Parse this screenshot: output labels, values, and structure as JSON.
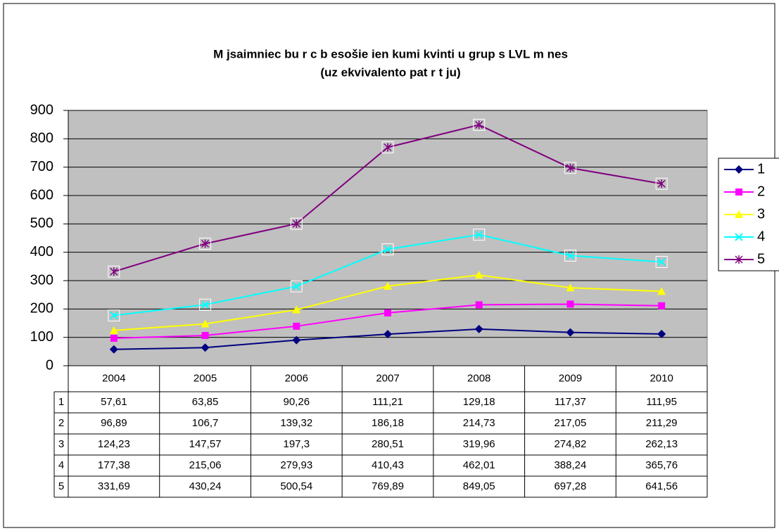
{
  "chart_data": {
    "type": "line",
    "title": "M jsaimniec bu r c b esošie ien kumi kvinti u grup s LVL m nes",
    "subtitle": "(uz ekvivalento pat r t ju)",
    "categories": [
      "2004",
      "2005",
      "2006",
      "2007",
      "2008",
      "2009",
      "2010"
    ],
    "series": [
      {
        "name": "1",
        "color": "#000080",
        "marker": "diamond",
        "values": [
          57.61,
          63.85,
          90.26,
          111.21,
          129.18,
          117.37,
          111.95
        ],
        "value_labels": [
          "57,61",
          "63,85",
          "90,26",
          "111,21",
          "129,18",
          "117,37",
          "111,95"
        ]
      },
      {
        "name": "2",
        "color": "#ff00ff",
        "marker": "square",
        "values": [
          96.89,
          106.7,
          139.32,
          186.18,
          214.73,
          217.05,
          211.29
        ],
        "value_labels": [
          "96,89",
          "106,7",
          "139,32",
          "186,18",
          "214,73",
          "217,05",
          "211,29"
        ]
      },
      {
        "name": "3",
        "color": "#ffff00",
        "marker": "triangle",
        "values": [
          124.23,
          147.57,
          197.3,
          280.51,
          319.96,
          274.82,
          262.13
        ],
        "value_labels": [
          "124,23",
          "147,57",
          "197,3",
          "280,51",
          "319,96",
          "274,82",
          "262,13"
        ]
      },
      {
        "name": "4",
        "color": "#00ffff",
        "marker": "x",
        "values": [
          177.38,
          215.06,
          279.93,
          410.43,
          462.01,
          388.24,
          365.76
        ],
        "value_labels": [
          "177,38",
          "215,06",
          "279,93",
          "410,43",
          "462,01",
          "388,24",
          "365,76"
        ]
      },
      {
        "name": "5",
        "color": "#800080",
        "marker": "star",
        "values": [
          331.69,
          430.24,
          500.54,
          769.89,
          849.05,
          697.28,
          641.56
        ],
        "value_labels": [
          "331,69",
          "430,24",
          "500,54",
          "769,89",
          "849,05",
          "697,28",
          "641,56"
        ]
      }
    ],
    "ylim": [
      0,
      900
    ],
    "yticks": [
      0,
      100,
      200,
      300,
      400,
      500,
      600,
      700,
      800,
      900
    ],
    "grid": true,
    "legend": "right"
  }
}
